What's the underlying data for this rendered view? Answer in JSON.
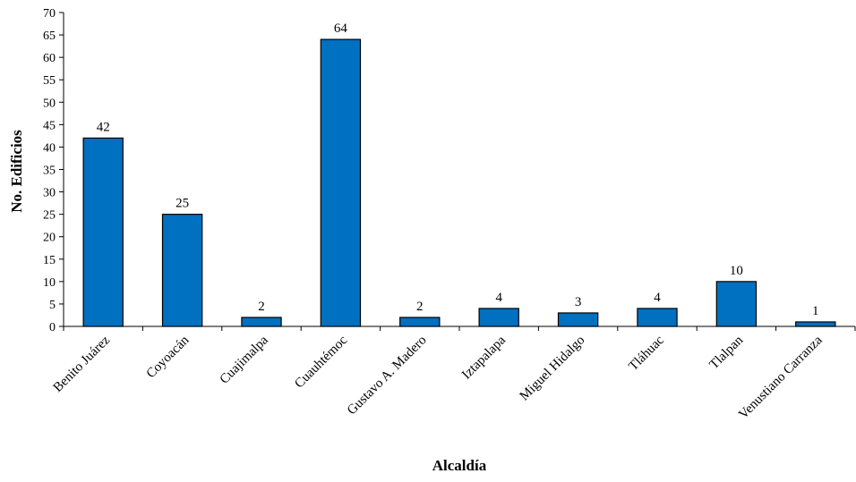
{
  "chart_data": {
    "type": "bar",
    "categories": [
      "Benito Juárez",
      "Coyoacán",
      "Cuajimalpa",
      "Cuauhtémoc",
      "Gustavo A. Madero",
      "Iztapalapa",
      "Miguel Hidalgo",
      "Tláhuac",
      "Tlalpan",
      "Venustiano Carranza"
    ],
    "values": [
      42,
      25,
      2,
      64,
      2,
      4,
      3,
      4,
      10,
      1
    ],
    "xlabel": "Alcaldía",
    "ylabel": "No. Edificios",
    "ylim": [
      0,
      70
    ],
    "yticks": [
      0,
      5,
      10,
      15,
      20,
      25,
      30,
      35,
      40,
      45,
      50,
      55,
      60,
      65,
      70
    ],
    "grid": false,
    "legend": "none",
    "bar_color": "#0070C0",
    "bar_edge_color": "#000000"
  }
}
